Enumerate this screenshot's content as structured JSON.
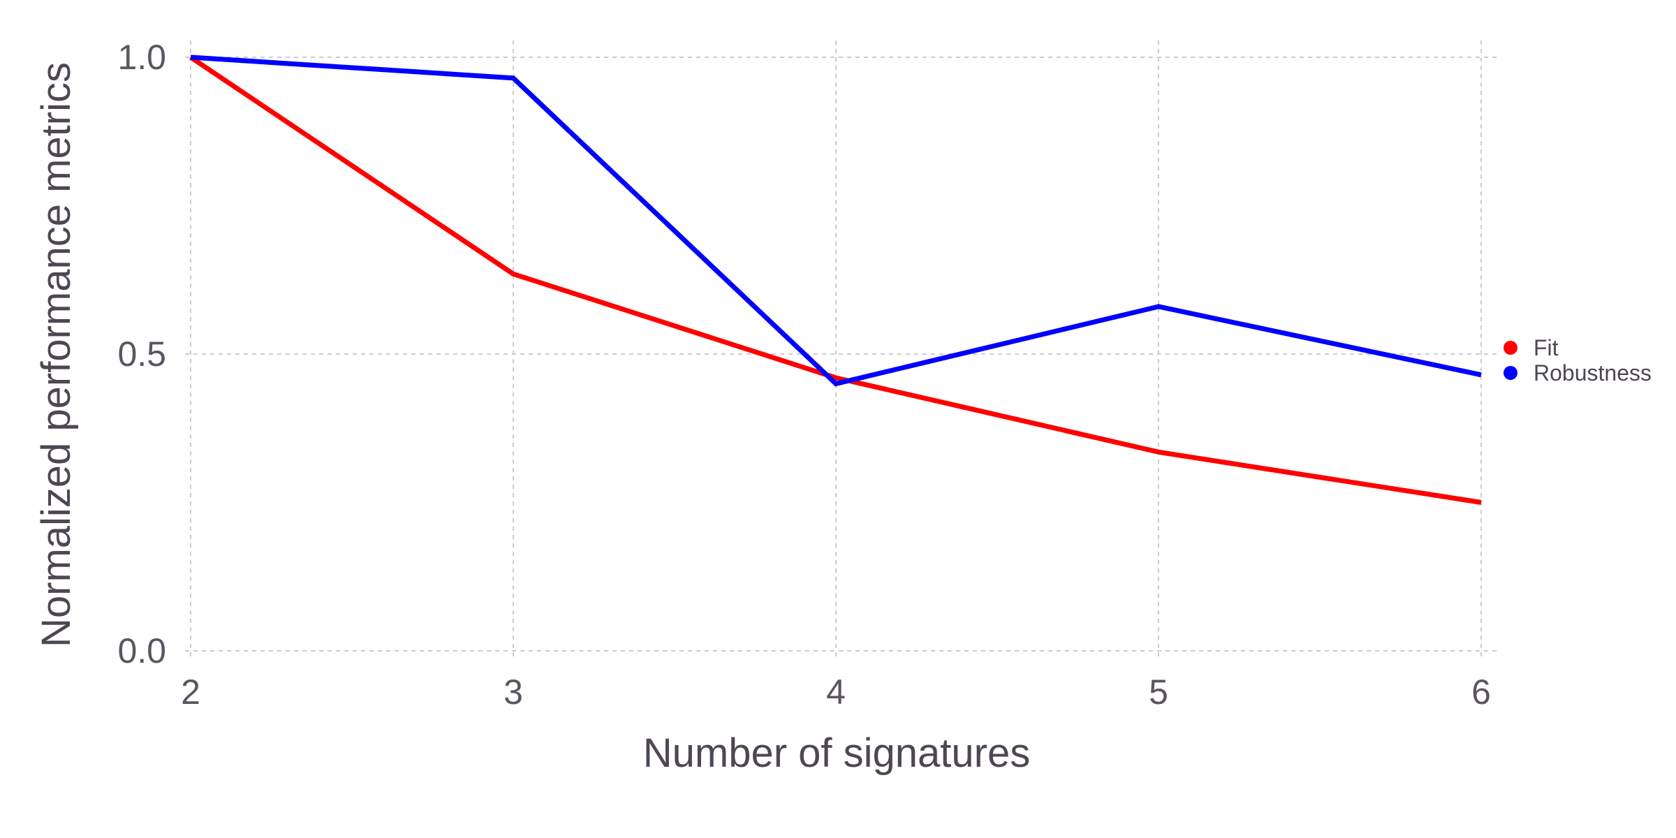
{
  "chart_data": {
    "type": "line",
    "x": [
      2,
      3,
      4,
      5,
      6
    ],
    "x_ticks": [
      "2",
      "3",
      "4",
      "5",
      "6"
    ],
    "y_ticks": [
      "0.0",
      "0.5",
      "1.0"
    ],
    "y_tick_values": [
      0,
      0.5,
      1
    ],
    "xlim": [
      2,
      6
    ],
    "ylim": [
      0,
      1
    ],
    "xlabel": "Number of signatures",
    "ylabel": "Normalized performance metrics",
    "grid": true,
    "legend_position": "right",
    "series": [
      {
        "name": "Fit",
        "color": "#ff0000",
        "values": [
          1.0,
          0.635,
          0.46,
          0.335,
          0.25
        ]
      },
      {
        "name": "Robustness",
        "color": "#0000ff",
        "values": [
          1.0,
          0.965,
          0.45,
          0.58,
          0.465
        ]
      }
    ]
  }
}
